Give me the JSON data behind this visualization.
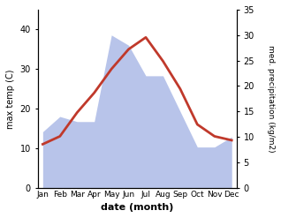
{
  "months": [
    "Jan",
    "Feb",
    "Mar",
    "Apr",
    "May",
    "Jun",
    "Jul",
    "Aug",
    "Sep",
    "Oct",
    "Nov",
    "Dec"
  ],
  "temperature": [
    11,
    13,
    19,
    24,
    30,
    35,
    38,
    32,
    25,
    16,
    13,
    12
  ],
  "precipitation": [
    11,
    14,
    13,
    13,
    30,
    28,
    22,
    22,
    15,
    8,
    8,
    10
  ],
  "temp_color": "#c0392b",
  "precip_fill_color": "#b8c4ea",
  "temp_ylim": [
    0,
    45
  ],
  "temp_yticks": [
    0,
    10,
    20,
    30,
    40
  ],
  "precip_ylim": [
    0,
    35
  ],
  "precip_yticks": [
    0,
    5,
    10,
    15,
    20,
    25,
    30,
    35
  ],
  "xlabel": "date (month)",
  "ylabel_left": "max temp (C)",
  "ylabel_right": "med. precipitation (kg/m2)",
  "fig_width": 3.18,
  "fig_height": 2.47,
  "dpi": 100
}
